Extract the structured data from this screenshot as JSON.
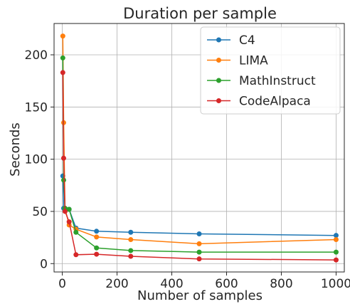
{
  "chart_data": {
    "type": "line",
    "title": "Duration per sample",
    "xlabel": "Number of samples",
    "ylabel": "Seconds",
    "xlim": [
      -30,
      1030
    ],
    "ylim": [
      -8,
      230
    ],
    "xticks": [
      0,
      200,
      400,
      600,
      800,
      1000
    ],
    "yticks": [
      0,
      50,
      100,
      150,
      200
    ],
    "grid": true,
    "legend_position": "top-right",
    "series": [
      {
        "name": "C4",
        "color": "#1f77b4",
        "x": [
          2,
          5,
          10,
          25,
          50,
          125,
          250,
          500,
          1000
        ],
        "y": [
          84,
          53,
          52,
          52,
          34,
          31,
          30,
          28.5,
          27
        ]
      },
      {
        "name": "LIMA",
        "color": "#ff7f0e",
        "x": [
          2,
          5,
          10,
          25,
          50,
          125,
          250,
          500,
          1000
        ],
        "y": [
          218,
          135,
          53,
          37,
          33,
          25.5,
          23,
          19,
          23
        ]
      },
      {
        "name": "MathInstruct",
        "color": "#2ca02c",
        "x": [
          2,
          5,
          10,
          25,
          50,
          125,
          250,
          500,
          1000
        ],
        "y": [
          197,
          80,
          53,
          52,
          30,
          15,
          12.5,
          11,
          11
        ]
      },
      {
        "name": "CodeAlpaca",
        "color": "#d62728",
        "x": [
          2,
          5,
          10,
          25,
          50,
          125,
          250,
          500,
          1000
        ],
        "y": [
          183,
          101,
          50,
          40,
          8.5,
          9,
          7,
          4.5,
          3.5
        ]
      }
    ]
  }
}
